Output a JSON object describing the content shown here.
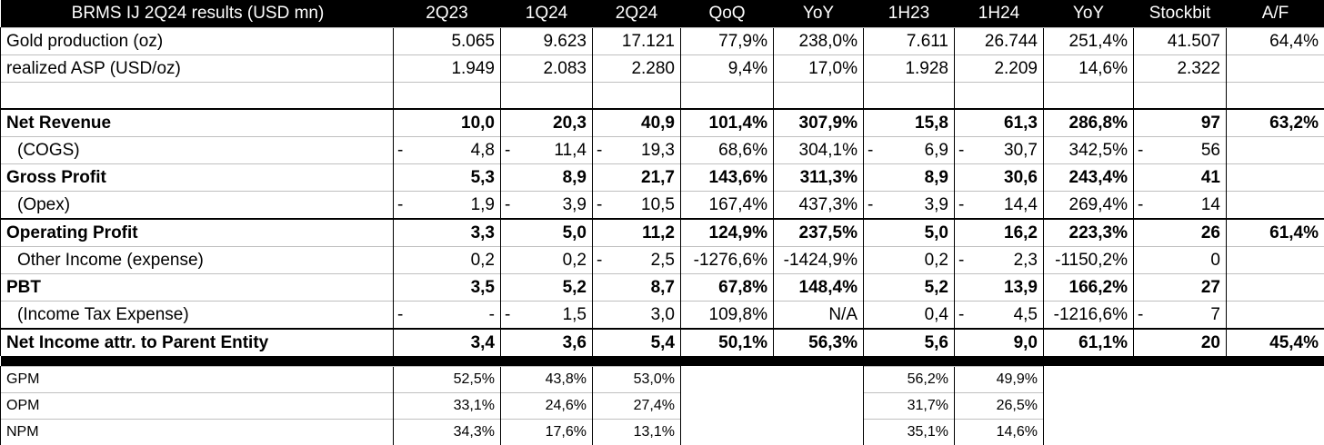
{
  "title": "BRMS IJ 2Q24 results (USD mn)",
  "headers": [
    "2Q23",
    "1Q24",
    "2Q24",
    "QoQ",
    "YoY",
    "1H23",
    "1H24",
    "YoY",
    "Stockbit",
    "A/F"
  ],
  "rows": [
    {
      "label": "Gold production (oz)",
      "style": "normal",
      "cells": [
        "5.065",
        "9.623",
        "17.121",
        "77,9%",
        "238,0%",
        "7.611",
        "26.744",
        "251,4%",
        "41.507",
        "64,4%"
      ],
      "neg": [
        false,
        false,
        false,
        false,
        false,
        false,
        false,
        false,
        false,
        false
      ]
    },
    {
      "label": "realized ASP (USD/oz)",
      "style": "normal",
      "cells": [
        "1.949",
        "2.083",
        "2.280",
        "9,4%",
        "17,0%",
        "1.928",
        "2.209",
        "14,6%",
        "2.322",
        ""
      ],
      "neg": [
        false,
        false,
        false,
        false,
        false,
        false,
        false,
        false,
        false,
        false
      ]
    },
    {
      "label": "",
      "style": "blank",
      "cells": [
        "",
        "",
        "",
        "",
        "",
        "",
        "",
        "",
        "",
        ""
      ],
      "neg": [
        false,
        false,
        false,
        false,
        false,
        false,
        false,
        false,
        false,
        false
      ]
    },
    {
      "label": "Net Revenue",
      "style": "bold",
      "cells": [
        "10,0",
        "20,3",
        "40,9",
        "101,4%",
        "307,9%",
        "15,8",
        "61,3",
        "286,8%",
        "97",
        "63,2%"
      ],
      "neg": [
        false,
        false,
        false,
        false,
        false,
        false,
        false,
        false,
        false,
        false
      ]
    },
    {
      "label": "(COGS)",
      "style": "indent",
      "cells": [
        "4,8",
        "11,4",
        "19,3",
        "68,6%",
        "304,1%",
        "6,9",
        "30,7",
        "342,5%",
        "56",
        ""
      ],
      "neg": [
        true,
        true,
        true,
        false,
        false,
        true,
        true,
        false,
        true,
        false
      ]
    },
    {
      "label": "Gross Profit",
      "style": "bold",
      "cells": [
        "5,3",
        "8,9",
        "21,7",
        "143,6%",
        "311,3%",
        "8,9",
        "30,6",
        "243,4%",
        "41",
        ""
      ],
      "neg": [
        false,
        false,
        false,
        false,
        false,
        false,
        false,
        false,
        false,
        false
      ]
    },
    {
      "label": "(Opex)",
      "style": "indent",
      "cells": [
        "1,9",
        "3,9",
        "10,5",
        "167,4%",
        "437,3%",
        "3,9",
        "14,4",
        "269,4%",
        "14",
        ""
      ],
      "neg": [
        true,
        true,
        true,
        false,
        false,
        true,
        true,
        false,
        true,
        false
      ]
    },
    {
      "label": "Operating Profit",
      "style": "bold",
      "cells": [
        "3,3",
        "5,0",
        "11,2",
        "124,9%",
        "237,5%",
        "5,0",
        "16,2",
        "223,3%",
        "26",
        "61,4%"
      ],
      "neg": [
        false,
        false,
        false,
        false,
        false,
        false,
        false,
        false,
        false,
        false
      ]
    },
    {
      "label": "Other Income (expense)",
      "style": "indent",
      "cells": [
        "0,2",
        "0,2",
        "2,5",
        "-1276,6%",
        "-1424,9%",
        "0,2",
        "2,3",
        "-1150,2%",
        "0",
        ""
      ],
      "neg": [
        false,
        false,
        true,
        false,
        false,
        false,
        true,
        false,
        false,
        false
      ]
    },
    {
      "label": "PBT",
      "style": "bold",
      "cells": [
        "3,5",
        "5,2",
        "8,7",
        "67,8%",
        "148,4%",
        "5,2",
        "13,9",
        "166,2%",
        "27",
        ""
      ],
      "neg": [
        false,
        false,
        false,
        false,
        false,
        false,
        false,
        false,
        false,
        false
      ]
    },
    {
      "label": "(Income Tax Expense)",
      "style": "indent",
      "cells": [
        "-",
        "1,5",
        "3,0",
        "109,8%",
        "N/A",
        "0,4",
        "4,5",
        "-1216,6%",
        "7",
        ""
      ],
      "neg": [
        true,
        true,
        false,
        false,
        false,
        false,
        true,
        false,
        true,
        false
      ]
    },
    {
      "label": "Net Income attr. to Parent Entity",
      "style": "bold",
      "cells": [
        "3,4",
        "3,6",
        "5,4",
        "50,1%",
        "56,3%",
        "5,6",
        "9,0",
        "61,1%",
        "20",
        "45,4%"
      ],
      "neg": [
        false,
        false,
        false,
        false,
        false,
        false,
        false,
        false,
        false,
        false
      ]
    }
  ],
  "ratios": [
    {
      "label": "GPM",
      "q": [
        "52,5%",
        "43,8%",
        "53,0%"
      ],
      "h": [
        "56,2%",
        "49,9%"
      ]
    },
    {
      "label": "OPM",
      "q": [
        "33,1%",
        "24,6%",
        "27,4%"
      ],
      "h": [
        "31,7%",
        "26,5%"
      ]
    },
    {
      "label": "NPM",
      "q": [
        "34,3%",
        "17,6%",
        "13,1%"
      ],
      "h": [
        "35,1%",
        "14,6%"
      ]
    }
  ],
  "neg_sign": "-"
}
